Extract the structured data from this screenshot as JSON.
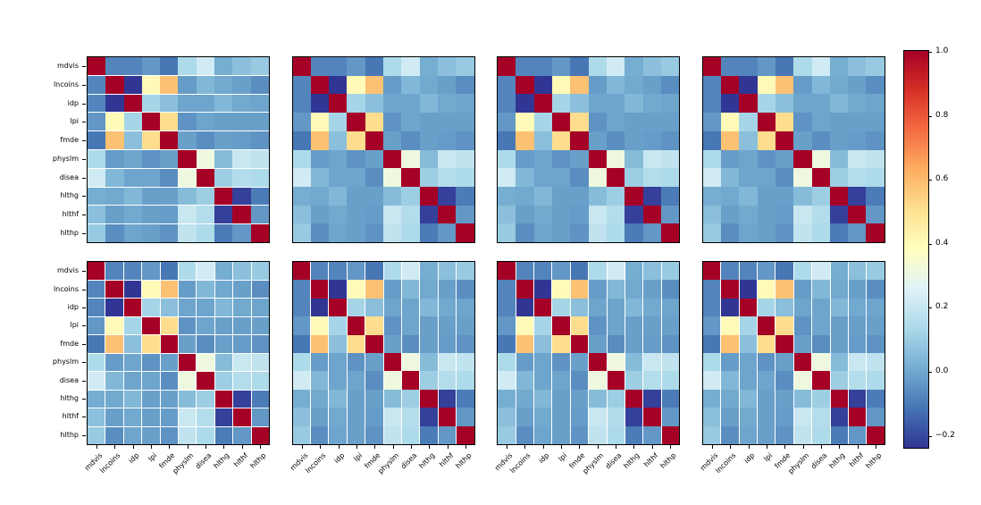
{
  "figure": {
    "background": "#ffffff"
  },
  "chart_data": {
    "type": "heatmap",
    "description": "Grid of 8 identical correlation-matrix heatmaps (2 rows x 4 columns) with one shared vertical colorbar on the right",
    "variables": [
      "mdvis",
      "lncoins",
      "idp",
      "lpi",
      "fmde",
      "physlm",
      "disea",
      "hlthg",
      "hlthf",
      "hlthp"
    ],
    "matrix": [
      [
        1.0,
        -0.08,
        -0.08,
        -0.04,
        -0.11,
        0.14,
        0.22,
        0.01,
        0.06,
        0.09
      ],
      [
        -0.08,
        1.0,
        -0.24,
        0.4,
        0.58,
        -0.03,
        0.04,
        0.0,
        -0.02,
        -0.06
      ],
      [
        -0.08,
        -0.24,
        1.0,
        0.12,
        0.06,
        -0.01,
        -0.01,
        0.04,
        0.0,
        -0.01
      ],
      [
        -0.04,
        0.4,
        0.12,
        1.0,
        0.51,
        -0.05,
        -0.01,
        -0.02,
        -0.02,
        -0.02
      ],
      [
        -0.11,
        0.58,
        0.06,
        0.51,
        1.0,
        -0.02,
        -0.06,
        -0.02,
        -0.03,
        -0.05
      ],
      [
        0.14,
        -0.03,
        -0.01,
        -0.05,
        -0.02,
        1.0,
        0.31,
        0.05,
        0.2,
        0.18
      ],
      [
        0.22,
        0.04,
        -0.01,
        -0.01,
        -0.06,
        0.31,
        1.0,
        0.1,
        0.15,
        0.14
      ],
      [
        0.01,
        0.0,
        0.04,
        -0.02,
        -0.02,
        0.05,
        0.1,
        1.0,
        -0.22,
        -0.1
      ],
      [
        0.06,
        -0.02,
        0.0,
        -0.02,
        -0.03,
        0.2,
        0.15,
        -0.22,
        1.0,
        -0.04
      ],
      [
        0.09,
        -0.06,
        -0.01,
        -0.02,
        -0.05,
        0.18,
        0.14,
        -0.1,
        -0.04,
        1.0
      ]
    ],
    "vmin": -0.24,
    "vmax": 1.0,
    "grid_shape": {
      "rows": 2,
      "cols": 4
    },
    "panels": [
      {
        "row": 0,
        "col": 0,
        "y_labels": true,
        "x_labels": false,
        "h_gaps": true,
        "v_gaps": false
      },
      {
        "row": 0,
        "col": 1,
        "y_labels": false,
        "x_labels": false,
        "h_gaps": false,
        "v_gaps": false
      },
      {
        "row": 0,
        "col": 2,
        "y_labels": false,
        "x_labels": false,
        "h_gaps": false,
        "v_gaps": false
      },
      {
        "row": 0,
        "col": 3,
        "y_labels": false,
        "x_labels": false,
        "h_gaps": false,
        "v_gaps": false
      },
      {
        "row": 1,
        "col": 0,
        "y_labels": true,
        "x_labels": true,
        "h_gaps": true,
        "v_gaps": true
      },
      {
        "row": 1,
        "col": 1,
        "y_labels": false,
        "x_labels": true,
        "h_gaps": false,
        "v_gaps": true
      },
      {
        "row": 1,
        "col": 2,
        "y_labels": false,
        "x_labels": true,
        "h_gaps": false,
        "v_gaps": true
      },
      {
        "row": 1,
        "col": 3,
        "y_labels": false,
        "x_labels": true,
        "h_gaps": false,
        "v_gaps": true
      }
    ],
    "colorbar": {
      "position": "right",
      "tick_values": [
        1.0,
        0.8,
        0.6,
        0.4,
        0.2,
        0.0,
        -0.2
      ],
      "tick_labels": [
        "1.0",
        "0.8",
        "0.6",
        "0.4",
        "0.2",
        "0.0",
        "−0.2"
      ]
    },
    "colormap": {
      "name": "RdYlBu_r",
      "stops": [
        "#313695",
        "#4575b4",
        "#74add1",
        "#abd9e9",
        "#e0f3f8",
        "#ffffbf",
        "#fee090",
        "#fdae61",
        "#f46d43",
        "#d73027",
        "#a50026"
      ]
    },
    "grid_lines_color": "#ffffff",
    "spine_color": "#000000"
  }
}
